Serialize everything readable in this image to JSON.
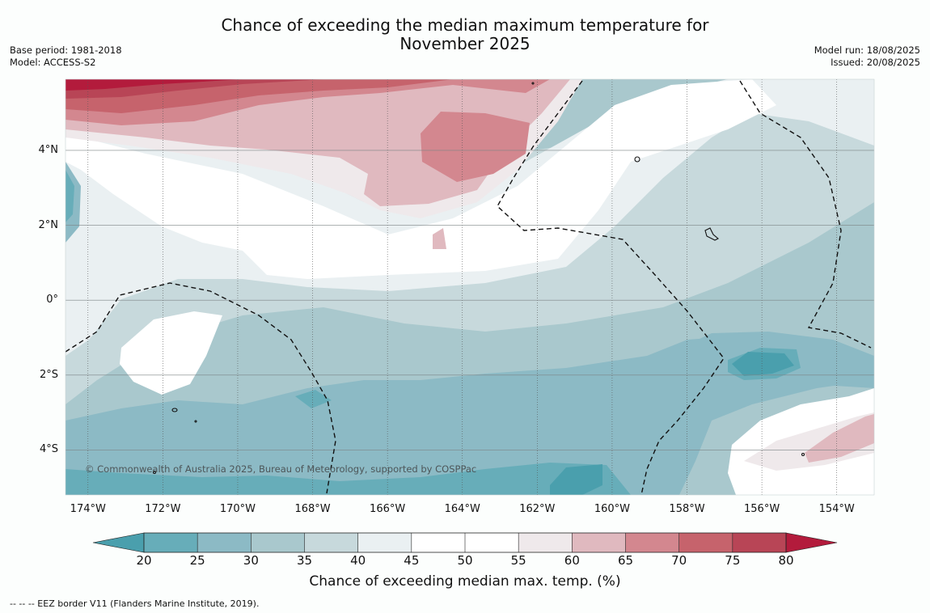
{
  "title_line1": "Chance of exceeding the median maximum temperature for",
  "title_line2": "November 2025",
  "base_period": "Base period: 1981-2018",
  "model": "Model: ACCESS-S2",
  "model_run": "Model run: 18/08/2025",
  "issued": "Issued: 20/08/2025",
  "copyright": "© Commonwealth of Australia 2025, Bureau of Meteorology, supported by COSPPac",
  "footnote": "--  --  -- EEZ border V11 (Flanders Marine Institute, 2019).",
  "lat_labels": [
    {
      "value": 4,
      "text": "4°N"
    },
    {
      "value": 2,
      "text": "2°N"
    },
    {
      "value": 0,
      "text": "0°"
    },
    {
      "value": -2,
      "text": "2°S"
    },
    {
      "value": -4,
      "text": "4°S"
    }
  ],
  "lon_labels": [
    {
      "value": -174,
      "text": "174°W"
    },
    {
      "value": -172,
      "text": "172°W"
    },
    {
      "value": -170,
      "text": "170°W"
    },
    {
      "value": -168,
      "text": "168°W"
    },
    {
      "value": -166,
      "text": "166°W"
    },
    {
      "value": -164,
      "text": "164°W"
    },
    {
      "value": -162,
      "text": "162°W"
    },
    {
      "value": -160,
      "text": "160°W"
    },
    {
      "value": -158,
      "text": "158°W"
    },
    {
      "value": -156,
      "text": "156°W"
    },
    {
      "value": -154,
      "text": "154°W"
    }
  ],
  "lon_range": [
    -174.6,
    -153
  ],
  "lat_range": [
    -5.2,
    5.9
  ],
  "colorbar": {
    "label": "Chance of exceeding median max. temp. (%)",
    "ticks": [
      "20",
      "25",
      "30",
      "35",
      "40",
      "45",
      "50",
      "55",
      "60",
      "65",
      "70",
      "75",
      "80"
    ],
    "under_color": "#4a9fad",
    "over_color": "#b31b3c",
    "colors": [
      "#67adb9",
      "#8cbac5",
      "#a9c8cd",
      "#c7d9dc",
      "#eaf0f2",
      "#ffffff",
      "#ffffff",
      "#efe9eb",
      "#e0b9bf",
      "#d3878f",
      "#c6636c",
      "#b84556"
    ]
  }
}
